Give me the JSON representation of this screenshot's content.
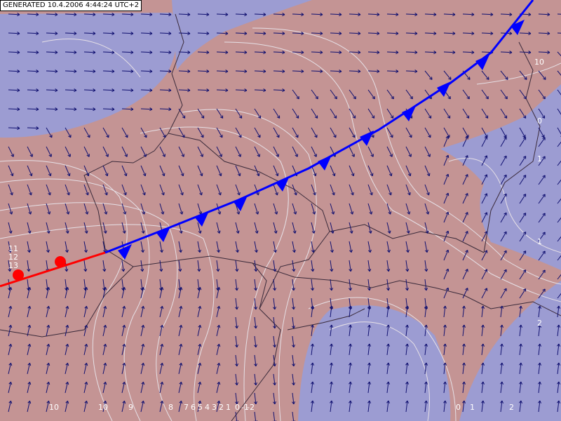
{
  "header": {
    "generated": "GENERATED 10.4.2006 4:44:24 UTC+2"
  },
  "contour_labels": [
    "10",
    "9",
    "8",
    "7",
    "6",
    "5",
    "4",
    "3",
    "2",
    "1",
    "0",
    "-1",
    "-2",
    "0",
    "1",
    "2",
    "10",
    "0",
    "1",
    "1",
    "2",
    "11",
    "12",
    "13"
  ]
}
